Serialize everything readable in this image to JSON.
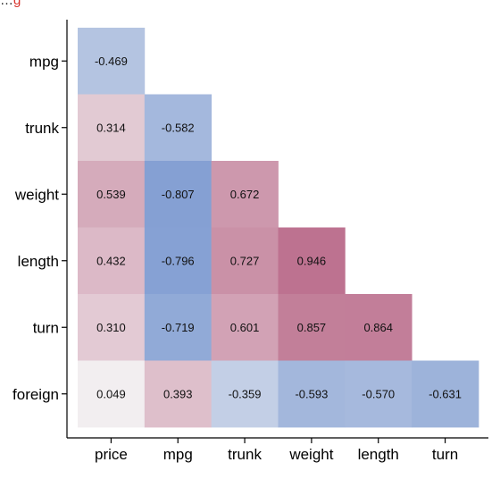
{
  "top_text": {
    "plain": "…",
    "highlight": "g"
  },
  "chart_data": {
    "type": "heatmap",
    "title": "",
    "xlabel": "",
    "ylabel": "",
    "x_categories": [
      "price",
      "mpg",
      "trunk",
      "weight",
      "length",
      "turn"
    ],
    "y_categories": [
      "mpg",
      "trunk",
      "weight",
      "length",
      "turn",
      "foreign"
    ],
    "matrix": [
      [
        -0.469,
        null,
        null,
        null,
        null,
        null
      ],
      [
        0.314,
        -0.582,
        null,
        null,
        null,
        null
      ],
      [
        0.539,
        -0.807,
        0.672,
        null,
        null,
        null
      ],
      [
        0.432,
        -0.796,
        0.727,
        0.946,
        null,
        null
      ],
      [
        0.31,
        -0.719,
        0.601,
        0.857,
        0.864,
        null
      ],
      [
        0.049,
        0.393,
        -0.359,
        -0.593,
        -0.57,
        -0.631
      ]
    ],
    "labels": [
      [
        "-0.469",
        "",
        "",
        "",
        "",
        ""
      ],
      [
        "0.314",
        "-0.582",
        "",
        "",
        "",
        ""
      ],
      [
        "0.539",
        "-0.807",
        "0.672",
        "",
        "",
        ""
      ],
      [
        "0.432",
        "-0.796",
        "0.727",
        "0.946",
        "",
        ""
      ],
      [
        "0.310",
        "-0.719",
        "0.601",
        "0.857",
        "0.864",
        ""
      ],
      [
        "0.049",
        "0.393",
        "-0.359",
        "-0.593",
        "-0.570",
        "-0.631"
      ]
    ],
    "value_range": [
      -1,
      1
    ],
    "colors": {
      "negative": "#6a8ccb",
      "neutral": "#f5f5f5",
      "positive": "#ba6b8a"
    },
    "grid": false,
    "legend": "none"
  }
}
